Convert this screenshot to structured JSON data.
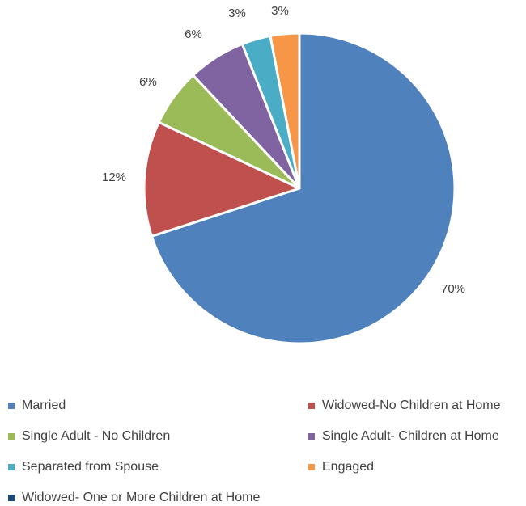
{
  "chart_data": {
    "type": "pie",
    "title": "",
    "slices": [
      {
        "label": "Married",
        "value": 70,
        "display": "70%",
        "color": "#4f81bd"
      },
      {
        "label": "Widowed-No Children at Home",
        "value": 12,
        "display": "12%",
        "color": "#c0504d"
      },
      {
        "label": "Single Adult - No Children",
        "value": 6,
        "display": "6%",
        "color": "#9bbb59"
      },
      {
        "label": "Single Adult- Children at Home",
        "value": 6,
        "display": "6%",
        "color": "#8064a2"
      },
      {
        "label": "Separated from Spouse",
        "value": 3,
        "display": "3%",
        "color": "#4bacc6"
      },
      {
        "label": "Engaged",
        "value": 3,
        "display": "3%",
        "color": "#f79646"
      },
      {
        "label": "Widowed- One or More Children at Home",
        "value": 0,
        "display": "",
        "color": "#1f497d"
      }
    ],
    "legend_position": "bottom"
  }
}
